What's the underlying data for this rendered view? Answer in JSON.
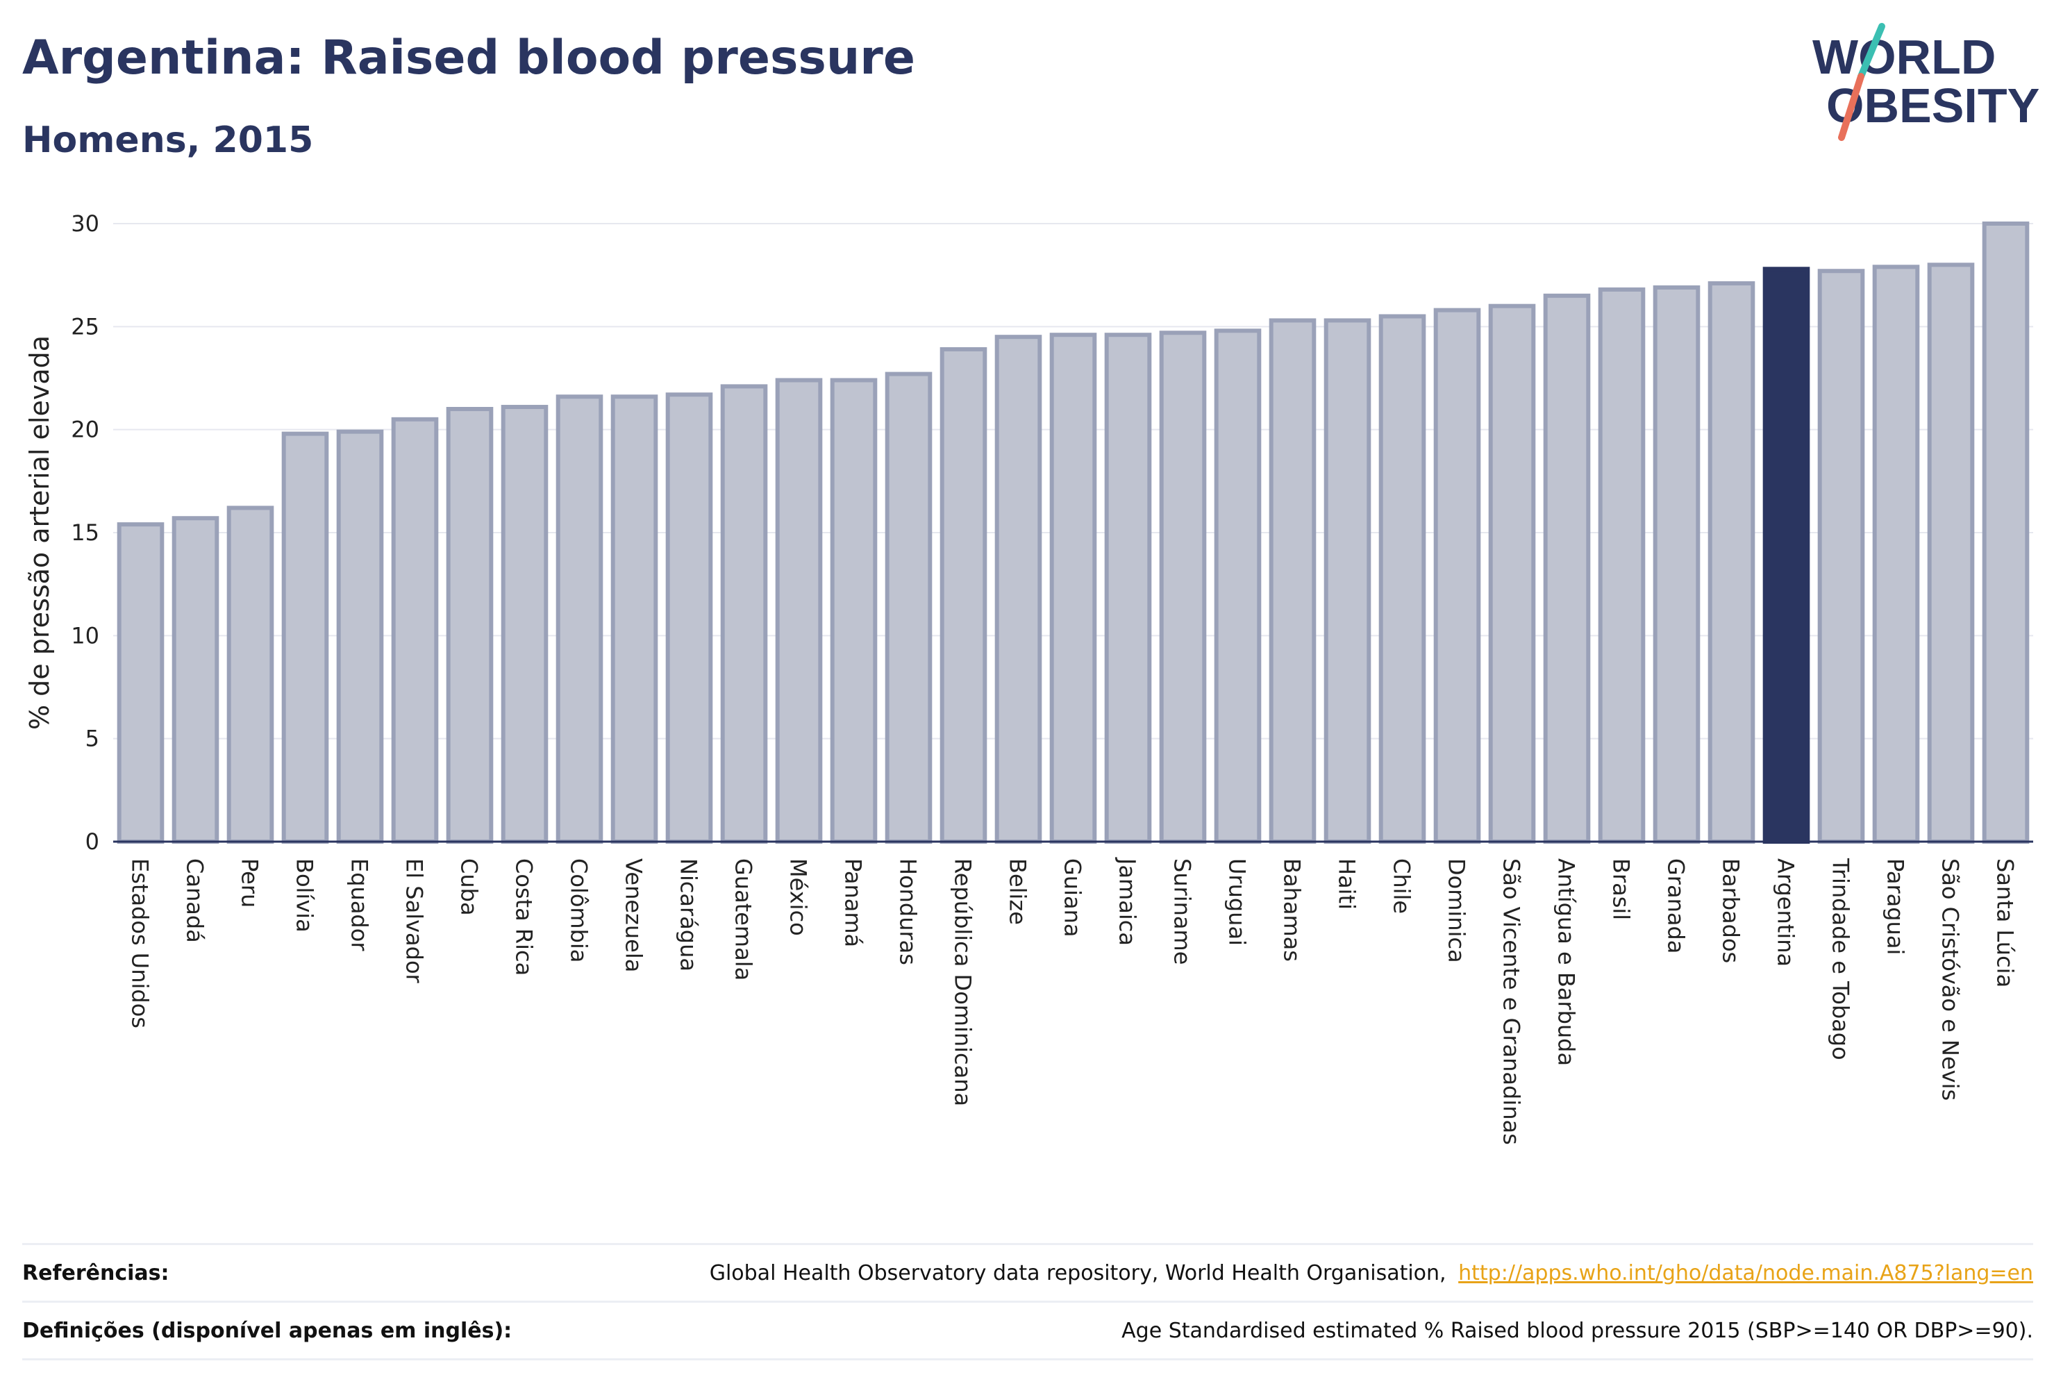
{
  "header": {
    "title": "Argentina: Raised blood pressure",
    "subtitle": "Homens, 2015"
  },
  "logo": {
    "line1": "WORLD",
    "line2": "OBESITY",
    "colors": {
      "text": "#2a3560",
      "slash_teal": "#3bbfb2",
      "slash_coral": "#e8705a"
    }
  },
  "chart_data": {
    "type": "bar",
    "ylabel": "% de pressão arterial elevada",
    "xlabel": "",
    "ylim": [
      0,
      30
    ],
    "yticks": [
      0,
      5,
      10,
      15,
      20,
      25,
      30
    ],
    "grid": true,
    "highlight": "Argentina",
    "colors": {
      "bar": "#bfc3d0",
      "bar_edge": "#9aa1b8",
      "highlight": "#2a3560",
      "grid": "#e6e8ef"
    },
    "categories": [
      "Estados Unidos",
      "Canadá",
      "Peru",
      "Bolívia",
      "Equador",
      "El Salvador",
      "Cuba",
      "Costa Rica",
      "Colômbia",
      "Venezuela",
      "Nicarágua",
      "Guatemala",
      "México",
      "Panamá",
      "Honduras",
      "República Dominicana",
      "Belize",
      "Guiana",
      "Jamaica",
      "Suriname",
      "Uruguai",
      "Bahamas",
      "Haiti",
      "Chile",
      "Dominica",
      "São Vicente e Granadinas",
      "Antígua e Barbuda",
      "Brasil",
      "Granada",
      "Barbados",
      "Argentina",
      "Trindade e Tobago",
      "Paraguai",
      "São Cristóvão e Nevis",
      "Santa Lúcia"
    ],
    "values": [
      15.4,
      15.7,
      16.2,
      19.8,
      19.9,
      20.5,
      21.0,
      21.1,
      21.6,
      21.6,
      21.7,
      22.1,
      22.4,
      22.4,
      22.7,
      23.9,
      24.5,
      24.6,
      24.6,
      24.7,
      24.8,
      25.3,
      25.3,
      25.5,
      25.8,
      26.0,
      26.5,
      26.8,
      26.9,
      27.1,
      27.8,
      27.7,
      27.9,
      28.0,
      30.0
    ]
  },
  "footer": {
    "references_label": "Referências:",
    "references_text": "Global Health Observatory data repository, World Health Organisation,",
    "references_link": "http://apps.who.int/gho/data/node.main.A875?lang=en",
    "definitions_label": "Definições (disponível apenas em inglês):",
    "definitions_text": "Age Standardised estimated % Raised blood pressure 2015 (SBP>=140 OR DBP>=90)."
  }
}
